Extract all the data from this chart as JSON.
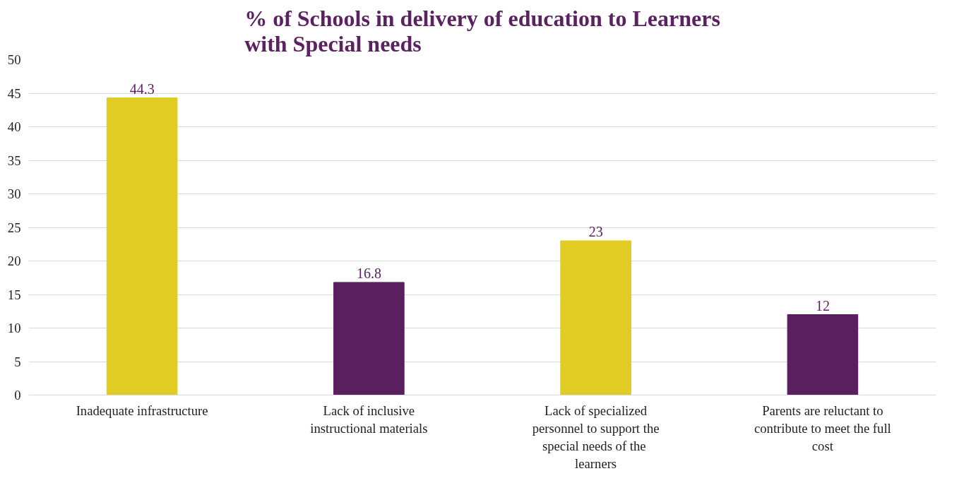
{
  "chart_data": {
    "type": "bar",
    "title": "% of Schools in delivery of education to Learners with Special needs",
    "categories": [
      "Inadequate infrastructure",
      "Lack of inclusive instructional materials",
      "Lack of specialized personnel to support the special  needs of the learners",
      "Parents are reluctant to contribute to meet the full cost"
    ],
    "values": [
      44.3,
      16.8,
      23,
      12
    ],
    "colors": [
      "#e0cc22",
      "#5a1f5e",
      "#e0cc22",
      "#5a1f5e"
    ],
    "ylim": [
      0,
      50
    ],
    "yticks": [
      0,
      5,
      10,
      15,
      20,
      25,
      30,
      35,
      40,
      45,
      50
    ],
    "grid": "y",
    "data_labels": true
  }
}
